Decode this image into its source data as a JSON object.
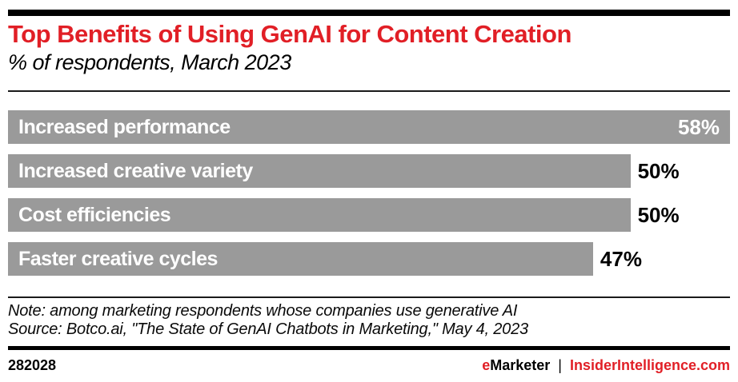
{
  "header": {
    "title": "Top Benefits of Using GenAI for Content Creation",
    "subtitle": "% of respondents, March 2023"
  },
  "chart_data": {
    "type": "bar",
    "orientation": "horizontal",
    "categories": [
      "Increased performance",
      "Increased creative variety",
      "Cost efficiencies",
      "Faster creative cycles"
    ],
    "values": [
      58,
      50,
      50,
      47
    ],
    "value_suffix": "%",
    "xlim": [
      0,
      58
    ],
    "grid": false,
    "legend": "none",
    "bar_color": "#9a9a9a",
    "title": "Top Benefits of Using GenAI for Content Creation",
    "xlabel": "",
    "ylabel": ""
  },
  "footnote": {
    "note": "Note: among marketing respondents whose companies use generative AI",
    "source": "Source: Botco.ai, \"The State of GenAI Chatbots in Marketing,\" May 4, 2023"
  },
  "footer": {
    "chart_id": "282028",
    "brand_first_letter": "e",
    "brand_rest": "Marketer",
    "separator": "|",
    "site": "InsiderIntelligence.com"
  },
  "colors": {
    "accent_red": "#e11f26",
    "bar_gray": "#9a9a9a",
    "rule_black": "#000000"
  }
}
